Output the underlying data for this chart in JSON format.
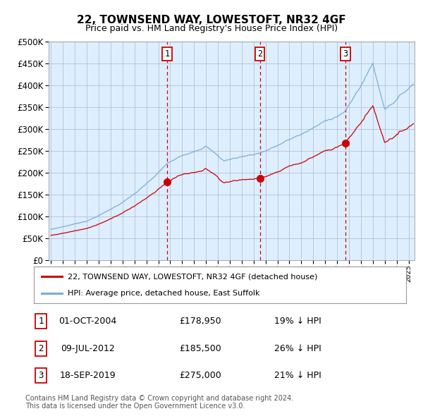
{
  "title1": "22, TOWNSEND WAY, LOWESTOFT, NR32 4GF",
  "title2": "Price paid vs. HM Land Registry's House Price Index (HPI)",
  "legend1": "22, TOWNSEND WAY, LOWESTOFT, NR32 4GF (detached house)",
  "legend2": "HPI: Average price, detached house, East Suffolk",
  "footer1": "Contains HM Land Registry data © Crown copyright and database right 2024.",
  "footer2": "This data is licensed under the Open Government Licence v3.0.",
  "transactions": [
    {
      "label": "1",
      "date": "01-OCT-2004",
      "price": 178950,
      "pct": "19%",
      "dir": "↓",
      "x_year": 2004.75
    },
    {
      "label": "2",
      "date": "09-JUL-2012",
      "price": 185500,
      "pct": "26%",
      "dir": "↓",
      "x_year": 2012.52
    },
    {
      "label": "3",
      "date": "18-SEP-2019",
      "price": 275000,
      "pct": "21%",
      "dir": "↓",
      "x_year": 2019.71
    }
  ],
  "ylim": [
    0,
    500000
  ],
  "yticks": [
    0,
    50000,
    100000,
    150000,
    200000,
    250000,
    300000,
    350000,
    400000,
    450000,
    500000
  ],
  "xlim_start": 1994.8,
  "xlim_end": 2025.5,
  "bg_color": "#ddeeff",
  "grid_color": "#b0b8cc",
  "red_line_color": "#cc0000",
  "blue_line_color": "#7dadd4",
  "vline_color": "#cc0000",
  "marker_color": "#cc0000",
  "box_edge_color": "#cc0000",
  "title1_fontsize": 11,
  "title2_fontsize": 9
}
